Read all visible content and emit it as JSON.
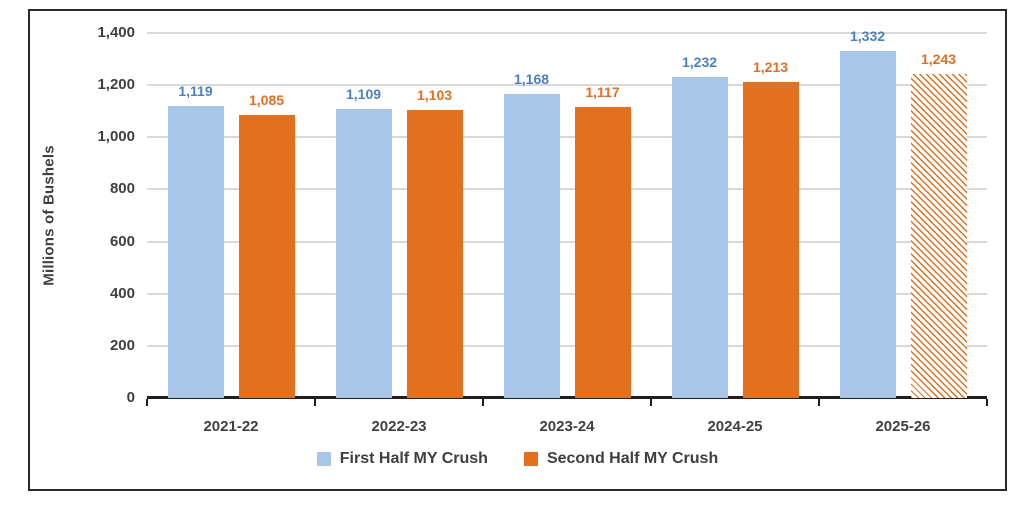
{
  "chart_data": {
    "type": "bar",
    "title": "",
    "xlabel": "",
    "ylabel": "Millions of Bushels",
    "categories": [
      "2021-22",
      "2022-23",
      "2023-24",
      "2024-25",
      "2025-26"
    ],
    "series": [
      {
        "name": "First Half MY Crush",
        "values": [
          1119,
          1109,
          1168,
          1232,
          1332
        ],
        "value_labels": [
          "1,119",
          "1,109",
          "1,168",
          "1,232",
          "1,332"
        ],
        "color": "#a7c6e8",
        "label_color": "#4b80c4"
      },
      {
        "name": "Second Half MY Crush",
        "values": [
          1085,
          1103,
          1117,
          1213,
          1243
        ],
        "value_labels": [
          "1,085",
          "1,103",
          "1,117",
          "1,213",
          "1,243"
        ],
        "color": "#e2701f",
        "label_color": "#e2701f"
      }
    ],
    "ylim": [
      0,
      1400
    ],
    "ytick_step": 200,
    "ytick_labels": [
      "0",
      "200",
      "400",
      "600",
      "800",
      "1,000",
      "1,200",
      "1,400"
    ],
    "grid": true,
    "legend_position": "bottom",
    "hatched_bars": [
      {
        "series": 1,
        "category_index": 4,
        "style": "diagonal-stripes"
      }
    ],
    "colors": {
      "gridline": "#d9d9d9",
      "axis_line": "#1f1f1f",
      "axis_text": "#404040",
      "legend_text": "#3f3f3f",
      "frame_border": "#2b2b2b",
      "background": "#ffffff"
    }
  }
}
